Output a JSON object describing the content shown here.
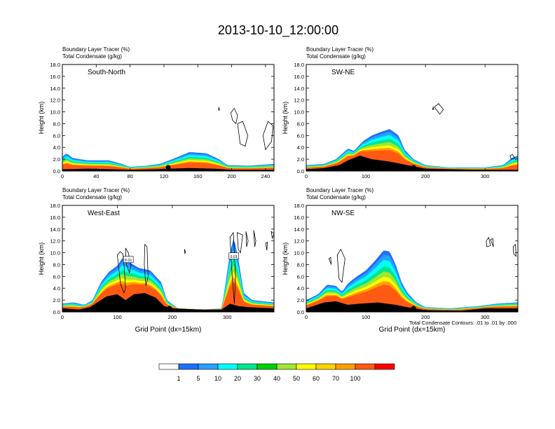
{
  "figure": {
    "title": "2013-10-10_12:00:00",
    "contour_note": "Total Condensate Contours: .01 to .01 by .000"
  },
  "colorbar": {
    "labels": [
      "1",
      "5",
      "10",
      "20",
      "30",
      "40",
      "50",
      "60",
      "70",
      "100"
    ],
    "colors": [
      "#ffffff",
      "#1e6eff",
      "#28a0ff",
      "#00ffff",
      "#00e68c",
      "#00d200",
      "#a0e632",
      "#ffff00",
      "#ffd200",
      "#ffa000",
      "#ff5a14",
      "#ff0000"
    ]
  },
  "chart_data": [
    {
      "type": "area",
      "name": "South-North",
      "legend_lines": [
        "Boundary Layer Tracer   (%)",
        "Total Condensate   (g/kg)"
      ],
      "ylabel": "Height (km)",
      "xlabel": "",
      "ylim": [
        0,
        18
      ],
      "yticks": [
        "0.0",
        "2.0",
        "4.0",
        "6.0",
        "8.0",
        "10.0",
        "12.0",
        "14.0",
        "16.0",
        "18.0"
      ],
      "xlim": [
        0,
        250
      ],
      "xticks": [
        0,
        40,
        80,
        120,
        160,
        200,
        240
      ],
      "marker_x": 125,
      "terrain": [
        [
          0,
          0.3
        ],
        [
          30,
          0.4
        ],
        [
          60,
          0.3
        ],
        [
          80,
          0.2
        ],
        [
          110,
          0.3
        ],
        [
          125,
          0.4
        ],
        [
          150,
          0.5
        ],
        [
          180,
          0.4
        ],
        [
          200,
          0.2
        ],
        [
          250,
          0.2
        ]
      ],
      "tracer_top": [
        [
          0,
          2.4
        ],
        [
          5,
          3.0
        ],
        [
          12,
          2.2
        ],
        [
          30,
          1.8
        ],
        [
          55,
          1.8
        ],
        [
          70,
          1.2
        ],
        [
          80,
          0.7
        ],
        [
          100,
          0.9
        ],
        [
          115,
          1.2
        ],
        [
          130,
          2.0
        ],
        [
          150,
          3.2
        ],
        [
          170,
          3.0
        ],
        [
          185,
          2.0
        ],
        [
          195,
          1.0
        ],
        [
          220,
          0.9
        ],
        [
          240,
          1.1
        ],
        [
          250,
          1.2
        ]
      ],
      "contours": [
        [
          [
            185,
            10.8
          ],
          [
            185.5,
            10.2
          ],
          [
            184.5,
            10.4
          ],
          [
            185,
            10.8
          ]
        ],
        [
          [
            199,
            9.8
          ],
          [
            203,
            10.6
          ],
          [
            207,
            9.4
          ],
          [
            205,
            8.0
          ],
          [
            201,
            8.6
          ],
          [
            199,
            9.8
          ]
        ],
        [
          [
            207,
            8.0
          ],
          [
            213,
            8.4
          ],
          [
            219,
            6.0
          ],
          [
            216,
            4.2
          ],
          [
            210,
            4.6
          ],
          [
            207,
            8.0
          ]
        ],
        [
          [
            237,
            6.0
          ],
          [
            243,
            8.4
          ],
          [
            249,
            7.6
          ],
          [
            247,
            5.0
          ],
          [
            240,
            3.6
          ],
          [
            237,
            6.0
          ]
        ]
      ]
    },
    {
      "type": "area",
      "name": "SW-NE",
      "legend_lines": [
        "Boundary Layer Tracer   (%)",
        "Total Condensate   (g/kg)"
      ],
      "ylabel": "Height (km)",
      "xlabel": "",
      "ylim": [
        0,
        18
      ],
      "yticks": [
        "0.0",
        "2.0",
        "4.0",
        "6.0",
        "8.0",
        "10.0",
        "12.0",
        "14.0",
        "16.0",
        "18.0"
      ],
      "xlim": [
        0,
        355
      ],
      "xticks": [
        0,
        100,
        200,
        300
      ],
      "marker_x": 180,
      "terrain": [
        [
          0,
          0.3
        ],
        [
          30,
          0.5
        ],
        [
          55,
          1.0
        ],
        [
          70,
          1.8
        ],
        [
          90,
          2.6
        ],
        [
          110,
          2.0
        ],
        [
          140,
          1.6
        ],
        [
          170,
          1.0
        ],
        [
          200,
          0.4
        ],
        [
          280,
          0.2
        ],
        [
          355,
          0.2
        ]
      ],
      "tracer_top": [
        [
          0,
          1.0
        ],
        [
          30,
          1.2
        ],
        [
          50,
          2.0
        ],
        [
          70,
          3.8
        ],
        [
          80,
          3.4
        ],
        [
          95,
          5.0
        ],
        [
          110,
          6.0
        ],
        [
          125,
          6.6
        ],
        [
          140,
          7.1
        ],
        [
          155,
          6.0
        ],
        [
          165,
          3.6
        ],
        [
          180,
          2.0
        ],
        [
          200,
          1.0
        ],
        [
          240,
          0.6
        ],
        [
          300,
          0.6
        ],
        [
          330,
          1.0
        ],
        [
          345,
          2.2
        ],
        [
          355,
          2.6
        ]
      ],
      "contours": [
        [
          [
            215,
            10.8
          ],
          [
            222,
            11.4
          ],
          [
            230,
            10.4
          ],
          [
            224,
            9.6
          ],
          [
            215,
            10.8
          ]
        ],
        [
          [
            212,
            10.4
          ],
          [
            213,
            10.8
          ],
          [
            214,
            10.4
          ],
          [
            212,
            10.4
          ]
        ],
        [
          [
            342,
            2.6
          ],
          [
            346,
            2.8
          ],
          [
            350,
            2.2
          ],
          [
            344,
            2.0
          ],
          [
            342,
            2.6
          ]
        ]
      ]
    },
    {
      "type": "area",
      "name": "West-East",
      "legend_lines": [
        "Boundary Layer Tracer   (%)",
        "Total Condensate   (g/kg)"
      ],
      "ylabel": "Height (km)",
      "xlabel": "Grid Point (dx=15km)",
      "ylim": [
        0,
        18
      ],
      "yticks": [
        "0.0",
        "2.0",
        "4.0",
        "6.0",
        "8.0",
        "10.0",
        "12.0",
        "14.0",
        "16.0",
        "18.0"
      ],
      "xlim": [
        0,
        385
      ],
      "xticks": [
        0,
        100,
        200,
        300
      ],
      "marker_x": 195,
      "contour_labels": [
        {
          "text": "0.01",
          "x": 120,
          "y": 8.8
        },
        {
          "text": "0.01",
          "x": 312,
          "y": 9.4
        }
      ],
      "terrain": [
        [
          0,
          0.6
        ],
        [
          30,
          0.4
        ],
        [
          50,
          0.8
        ],
        [
          60,
          1.4
        ],
        [
          80,
          2.6
        ],
        [
          100,
          3.0
        ],
        [
          115,
          2.0
        ],
        [
          130,
          3.0
        ],
        [
          150,
          3.2
        ],
        [
          170,
          2.4
        ],
        [
          185,
          1.0
        ],
        [
          200,
          0.6
        ],
        [
          250,
          0.4
        ],
        [
          290,
          0.4
        ],
        [
          305,
          1.4
        ],
        [
          320,
          1.0
        ],
        [
          340,
          0.8
        ],
        [
          385,
          0.6
        ]
      ],
      "tracer_top": [
        [
          0,
          1.4
        ],
        [
          20,
          1.6
        ],
        [
          40,
          1.2
        ],
        [
          55,
          2.0
        ],
        [
          70,
          5.0
        ],
        [
          85,
          6.8
        ],
        [
          100,
          7.8
        ],
        [
          110,
          9.2
        ],
        [
          125,
          8.2
        ],
        [
          140,
          7.4
        ],
        [
          160,
          7.0
        ],
        [
          180,
          5.0
        ],
        [
          190,
          2.0
        ],
        [
          210,
          0.6
        ],
        [
          260,
          0.4
        ],
        [
          290,
          0.6
        ],
        [
          305,
          10.0
        ],
        [
          312,
          12.6
        ],
        [
          320,
          9.0
        ],
        [
          330,
          3.2
        ],
        [
          345,
          2.0
        ],
        [
          365,
          1.8
        ],
        [
          385,
          1.6
        ]
      ],
      "contours": [
        [
          [
            100,
            9.6
          ],
          [
            105,
            10.2
          ],
          [
            110,
            9.8
          ],
          [
            112,
            8.0
          ],
          [
            115,
            4.0
          ],
          [
            112,
            3.2
          ],
          [
            106,
            4.6
          ],
          [
            100,
            9.6
          ]
        ],
        [
          [
            115,
            10.8
          ],
          [
            120,
            10.0
          ],
          [
            125,
            8.0
          ],
          [
            122,
            6.6
          ],
          [
            116,
            8.2
          ],
          [
            115,
            10.8
          ]
        ],
        [
          [
            150,
            11.4
          ],
          [
            154,
            11.0
          ],
          [
            156,
            6.0
          ],
          [
            152,
            4.4
          ],
          [
            149,
            8.0
          ],
          [
            150,
            11.4
          ]
        ],
        [
          [
            222,
            10.6
          ],
          [
            224,
            10.2
          ],
          [
            223,
            9.8
          ],
          [
            222,
            10.6
          ]
        ],
        [
          [
            305,
            12.6
          ],
          [
            311,
            13.4
          ],
          [
            315,
            6.0
          ],
          [
            313,
            1.4
          ],
          [
            309,
            5.8
          ],
          [
            305,
            12.6
          ]
        ],
        [
          [
            318,
            13.4
          ],
          [
            328,
            13.0
          ],
          [
            324,
            10.0
          ],
          [
            320,
            10.6
          ],
          [
            318,
            13.4
          ]
        ],
        [
          [
            334,
            13.6
          ],
          [
            338,
            12.0
          ],
          [
            335,
            11.0
          ],
          [
            334,
            13.6
          ]
        ],
        [
          [
            348,
            13.8
          ],
          [
            352,
            12.0
          ],
          [
            350,
            11.0
          ],
          [
            348,
            13.8
          ]
        ],
        [
          [
            370,
            11.6
          ],
          [
            373,
            11.8
          ],
          [
            372,
            10.4
          ],
          [
            370,
            11.6
          ]
        ],
        [
          [
            380,
            13.6
          ],
          [
            385,
            13.2
          ],
          [
            382,
            12.4
          ],
          [
            380,
            13.6
          ]
        ]
      ]
    },
    {
      "type": "area",
      "name": "NW-SE",
      "legend_lines": [
        "Boundary Layer Tracer   (%)",
        "Total Condensate   (g/kg)"
      ],
      "ylabel": "Height (km)",
      "xlabel": "Grid Point (dx=15km)",
      "ylim": [
        0,
        18
      ],
      "yticks": [
        "0.0",
        "2.0",
        "4.0",
        "6.0",
        "8.0",
        "10.0",
        "12.0",
        "14.0",
        "16.0",
        "18.0"
      ],
      "xlim": [
        0,
        355
      ],
      "xticks": [
        0,
        100,
        200,
        300
      ],
      "marker_x": 180,
      "terrain": [
        [
          0,
          0.6
        ],
        [
          30,
          1.6
        ],
        [
          50,
          1.8
        ],
        [
          70,
          1.2
        ],
        [
          90,
          1.4
        ],
        [
          120,
          1.6
        ],
        [
          150,
          1.2
        ],
        [
          170,
          0.8
        ],
        [
          200,
          0.3
        ],
        [
          260,
          0.2
        ],
        [
          300,
          0.6
        ],
        [
          355,
          0.6
        ]
      ],
      "tracer_top": [
        [
          0,
          2.0
        ],
        [
          20,
          3.0
        ],
        [
          35,
          4.6
        ],
        [
          50,
          4.4
        ],
        [
          60,
          3.4
        ],
        [
          70,
          4.8
        ],
        [
          85,
          6.0
        ],
        [
          100,
          7.0
        ],
        [
          115,
          8.6
        ],
        [
          130,
          10.4
        ],
        [
          140,
          10.2
        ],
        [
          150,
          8.0
        ],
        [
          160,
          5.0
        ],
        [
          170,
          3.2
        ],
        [
          185,
          1.6
        ],
        [
          200,
          0.8
        ],
        [
          240,
          0.6
        ],
        [
          290,
          1.0
        ],
        [
          320,
          1.4
        ],
        [
          355,
          1.6
        ]
      ],
      "contours": [
        [
          [
            52,
            9.6
          ],
          [
            58,
            10.6
          ],
          [
            65,
            9.0
          ],
          [
            60,
            5.0
          ],
          [
            55,
            5.6
          ],
          [
            52,
            9.6
          ]
        ],
        [
          [
            38,
            9.0
          ],
          [
            41,
            9.2
          ],
          [
            42,
            8.0
          ],
          [
            38,
            9.0
          ]
        ],
        [
          [
            302,
            12.0
          ],
          [
            306,
            12.6
          ],
          [
            309,
            11.2
          ],
          [
            303,
            11.0
          ],
          [
            302,
            12.0
          ]
        ],
        [
          [
            309,
            12.2
          ],
          [
            313,
            12.4
          ],
          [
            314,
            11.0
          ],
          [
            309,
            12.2
          ]
        ],
        [
          [
            347,
            11.0
          ],
          [
            351,
            11.4
          ],
          [
            352,
            9.4
          ],
          [
            348,
            9.8
          ],
          [
            347,
            11.0
          ]
        ]
      ]
    }
  ]
}
